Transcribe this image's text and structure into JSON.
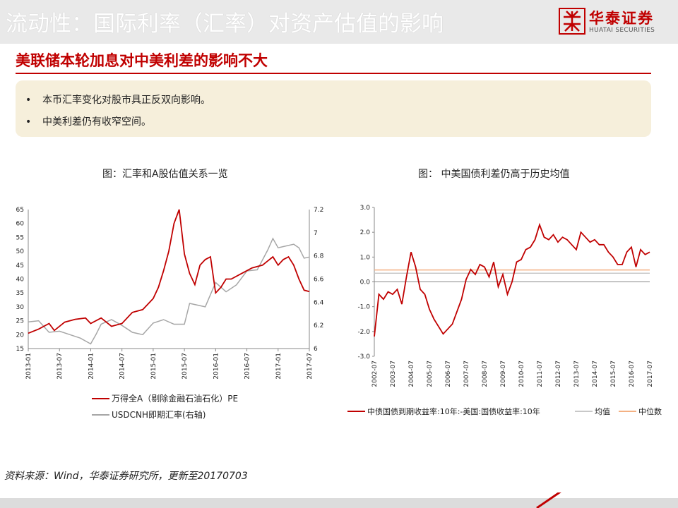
{
  "header": {
    "title": "流动性：国际利率（汇率）对资产估值的影响",
    "logo_cn": "华泰证券",
    "logo_en": "HUATAI SECURITIES"
  },
  "subtitle": "美联储本轮加息对中美利差的影响不大",
  "bullets": [
    "本币汇率变化对股市具正反双向影响。",
    "中美利差仍有收窄空间。"
  ],
  "footer": "资料来源：Wind，华泰证券研究所，更新至20170703",
  "colors": {
    "brand_red": "#c00000",
    "series_gray": "#a6a6a6",
    "mean_line": "#c8c8c8",
    "median_line": "#f4b183",
    "bullet_bg": "#f6efdb"
  },
  "chart_data": [
    {
      "type": "line",
      "title": "图：汇率和A股估值关系一览",
      "x_ticks": [
        "2013-01",
        "2013-07",
        "2014-01",
        "2014-07",
        "2015-01",
        "2015-07",
        "2016-01",
        "2016-07",
        "2017-01",
        "2017-07"
      ],
      "y_left": {
        "ylim": [
          15,
          65
        ],
        "ticks": [
          "15",
          "20",
          "25",
          "30",
          "35",
          "40",
          "45",
          "50",
          "55",
          "60",
          "65"
        ]
      },
      "y_right": {
        "ylim": [
          6,
          7.2
        ],
        "ticks": [
          "6",
          "6.2",
          "6.4",
          "6.6",
          "6.8",
          "7",
          "7.2"
        ]
      },
      "legend_placement": "bottom",
      "series": [
        {
          "name": "万得全A（剔除金融石油石化）PE",
          "axis": "left",
          "x": [
            "2013-01",
            "2013-03",
            "2013-05",
            "2013-06",
            "2013-08",
            "2013-10",
            "2013-12",
            "2014-01",
            "2014-03",
            "2014-05",
            "2014-07",
            "2014-09",
            "2014-11",
            "2014-12",
            "2015-01",
            "2015-02",
            "2015-03",
            "2015-04",
            "2015-05",
            "2015-06",
            "2015-07",
            "2015-08",
            "2015-09",
            "2015-10",
            "2015-11",
            "2015-12",
            "2016-01",
            "2016-02",
            "2016-03",
            "2016-04",
            "2016-06",
            "2016-08",
            "2016-10",
            "2016-12",
            "2017-01",
            "2017-02",
            "2017-03",
            "2017-04",
            "2017-05",
            "2017-06",
            "2017-07"
          ],
          "values": [
            20.5,
            22,
            24,
            21.5,
            24.5,
            25.5,
            26,
            24,
            26,
            23,
            24,
            28,
            29,
            31,
            33,
            37,
            43,
            50,
            60,
            65,
            49,
            42,
            38,
            45,
            47,
            48,
            35,
            37,
            40,
            40,
            42,
            44,
            45,
            48,
            45,
            47,
            48,
            45,
            40,
            36,
            35.5
          ]
        },
        {
          "name": "USDCNH即期汇率(右轴)",
          "axis": "right",
          "x": [
            "2013-01",
            "2013-03",
            "2013-05",
            "2013-07",
            "2013-09",
            "2013-11",
            "2014-01",
            "2014-02",
            "2014-03",
            "2014-05",
            "2014-07",
            "2014-09",
            "2014-11",
            "2015-01",
            "2015-03",
            "2015-05",
            "2015-07",
            "2015-08",
            "2015-09",
            "2015-11",
            "2016-01",
            "2016-03",
            "2016-05",
            "2016-07",
            "2016-09",
            "2016-11",
            "2016-12",
            "2017-01",
            "2017-02",
            "2017-04",
            "2017-05",
            "2017-06",
            "2017-07"
          ],
          "values": [
            6.23,
            6.24,
            6.14,
            6.15,
            6.12,
            6.09,
            6.04,
            6.12,
            6.21,
            6.25,
            6.2,
            6.14,
            6.12,
            6.22,
            6.25,
            6.21,
            6.21,
            6.39,
            6.38,
            6.36,
            6.57,
            6.49,
            6.55,
            6.67,
            6.68,
            6.85,
            6.95,
            6.87,
            6.88,
            6.9,
            6.87,
            6.78,
            6.79
          ]
        }
      ]
    },
    {
      "type": "line",
      "title": "图： 中美国债利差仍高于历史均值",
      "x_ticks": [
        "2002-07",
        "2003-07",
        "2004-07",
        "2005-07",
        "2006-07",
        "2007-07",
        "2008-07",
        "2009-07",
        "2010-07",
        "2011-07",
        "2012-07",
        "2013-07",
        "2014-07",
        "2015-07",
        "2016-07",
        "2017-07"
      ],
      "ylim": [
        -3.0,
        3.0
      ],
      "y_ticks": [
        "-3.0",
        "-2.0",
        "-1.0",
        "0.0",
        "1.0",
        "2.0",
        "3.0"
      ],
      "legend_placement": "bottom",
      "series": [
        {
          "name": "中债国债到期收益率:10年:-美国:国债收益率:10年",
          "x": [
            "2002-07",
            "2002-10",
            "2003-01",
            "2003-04",
            "2003-07",
            "2003-10",
            "2004-01",
            "2004-04",
            "2004-07",
            "2004-10",
            "2005-01",
            "2005-04",
            "2005-07",
            "2005-10",
            "2006-01",
            "2006-04",
            "2006-07",
            "2006-10",
            "2007-01",
            "2007-04",
            "2007-07",
            "2007-10",
            "2008-01",
            "2008-04",
            "2008-07",
            "2008-10",
            "2009-01",
            "2009-04",
            "2009-07",
            "2009-10",
            "2010-01",
            "2010-04",
            "2010-07",
            "2010-10",
            "2011-01",
            "2011-04",
            "2011-07",
            "2011-10",
            "2012-01",
            "2012-04",
            "2012-07",
            "2012-10",
            "2013-01",
            "2013-04",
            "2013-07",
            "2013-10",
            "2014-01",
            "2014-04",
            "2014-07",
            "2014-10",
            "2015-01",
            "2015-04",
            "2015-07",
            "2015-10",
            "2016-01",
            "2016-04",
            "2016-07",
            "2016-10",
            "2017-01",
            "2017-04",
            "2017-07"
          ],
          "values": [
            -2.2,
            -0.5,
            -0.7,
            -0.4,
            -0.5,
            -0.3,
            -0.9,
            0.2,
            1.2,
            0.6,
            -0.3,
            -0.5,
            -1.1,
            -1.5,
            -1.8,
            -2.1,
            -1.9,
            -1.7,
            -1.2,
            -0.7,
            0.1,
            0.5,
            0.3,
            0.7,
            0.6,
            0.2,
            0.8,
            -0.2,
            0.3,
            -0.5,
            0.0,
            0.8,
            0.9,
            1.3,
            1.4,
            1.7,
            2.3,
            1.8,
            1.7,
            1.9,
            1.6,
            1.8,
            1.7,
            1.5,
            1.3,
            2.0,
            1.8,
            1.6,
            1.7,
            1.5,
            1.5,
            1.2,
            1.0,
            0.7,
            0.7,
            1.2,
            1.4,
            0.6,
            1.3,
            1.1,
            1.2
          ]
        },
        {
          "name": "均值",
          "values": [
            0.35
          ]
        },
        {
          "name": "中位数",
          "values": [
            0.48
          ]
        }
      ]
    }
  ]
}
